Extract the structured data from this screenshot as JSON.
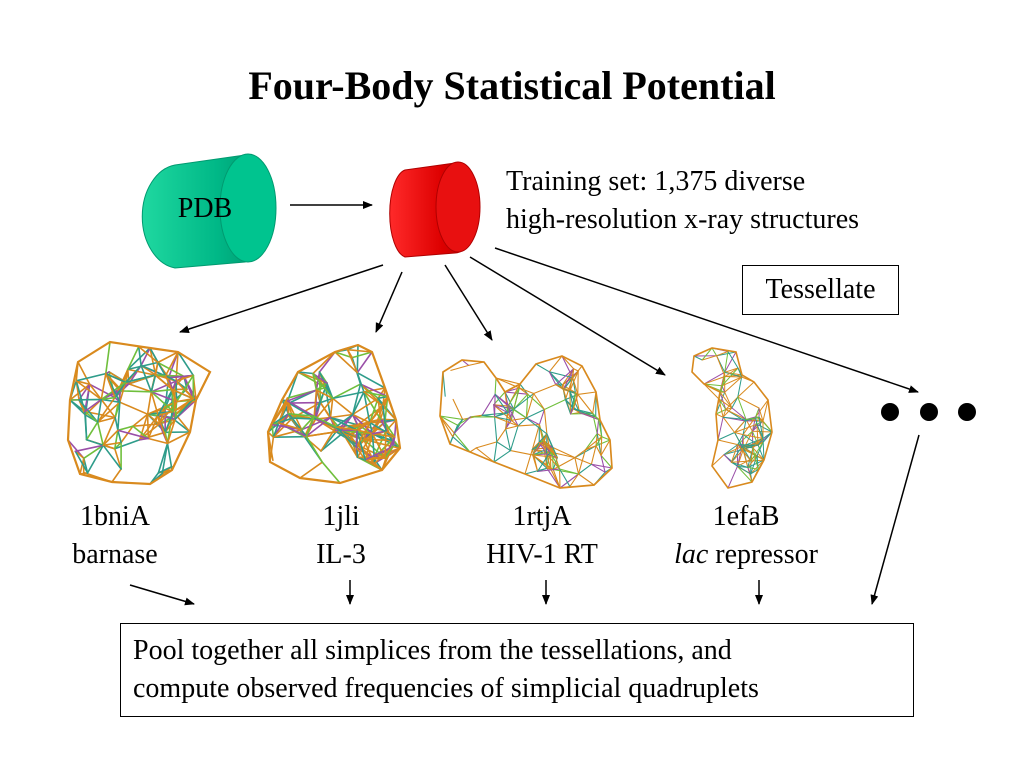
{
  "slide": {
    "title": "Four-Body Statistical Potential",
    "database_label": "PDB",
    "training_set": {
      "line1": "Training set: 1,375 diverse",
      "line2": "high-resolution x-ray structures"
    },
    "tessellate_label": "Tessellate",
    "ellipsis": "● ● ●",
    "structures": [
      {
        "id": "1bniA",
        "name": "barnase",
        "name_italic_part": "",
        "name_rest": "barnase"
      },
      {
        "id": "1jli",
        "name": "IL-3",
        "name_italic_part": "",
        "name_rest": "IL-3"
      },
      {
        "id": "1rtjA",
        "name": "HIV-1 RT",
        "name_italic_part": "",
        "name_rest": "HIV-1 RT"
      },
      {
        "id": "1efaB",
        "name": "lac repressor",
        "name_italic_part": "lac",
        "name_rest": " repressor"
      }
    ],
    "pool": {
      "line1": "Pool together all simplices from the tessellations, and",
      "line2": "compute observed frequencies of simplicial quadruplets"
    },
    "colors": {
      "pdb_cylinder": "#00b887",
      "training_cylinder": "#e00000",
      "mesh_orange": "#d98a1e",
      "mesh_teal": "#2e9c8a",
      "mesh_purple": "#9a4fa8",
      "mesh_green": "#6fbf3c"
    }
  }
}
